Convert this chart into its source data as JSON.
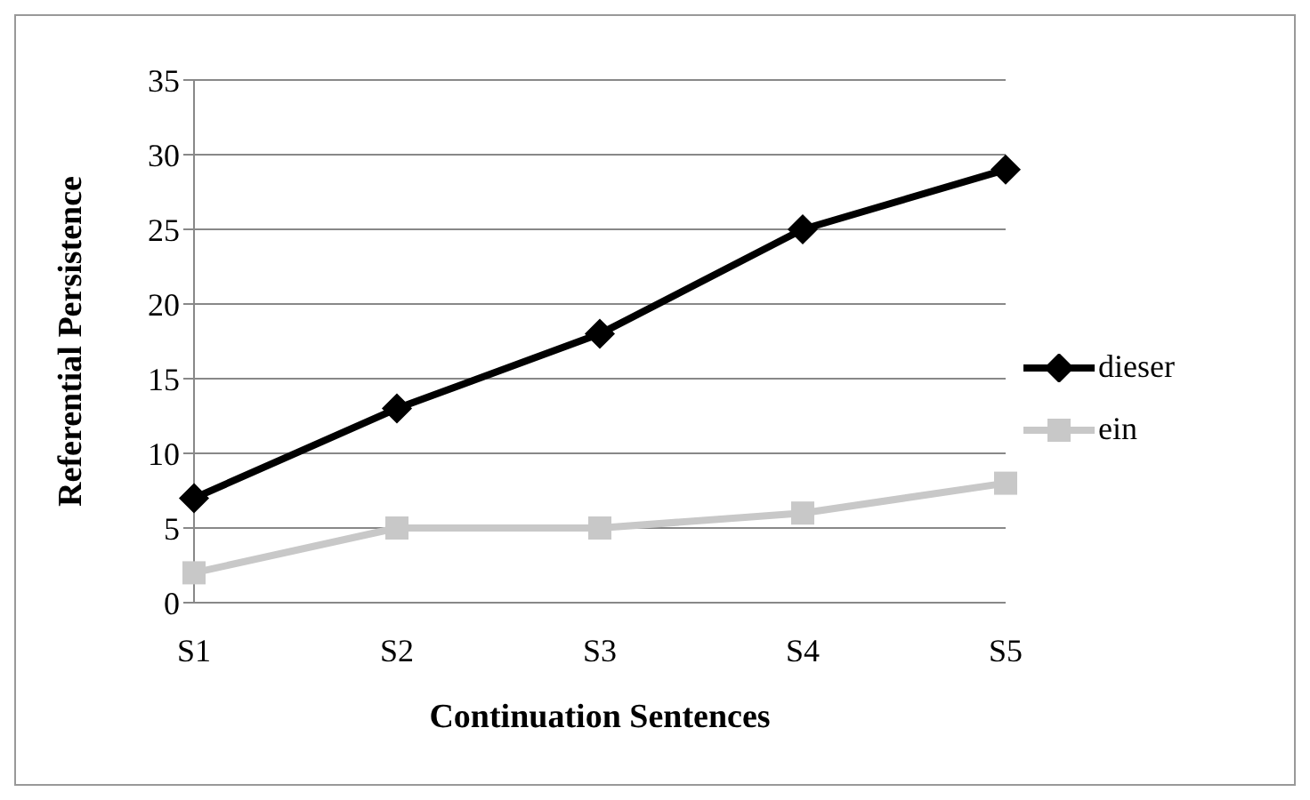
{
  "chart_data": {
    "type": "line",
    "xlabel": "Continuation Sentences",
    "ylabel": "Referential Persistence",
    "categories": [
      "S1",
      "S2",
      "S3",
      "S4",
      "S5"
    ],
    "series": [
      {
        "name": "dieser",
        "color": "#000000",
        "marker": "diamond",
        "values": [
          7,
          13,
          18,
          25,
          29
        ]
      },
      {
        "name": "ein",
        "color": "#c8c8c8",
        "marker": "square",
        "values": [
          2,
          5,
          5,
          6,
          8
        ]
      }
    ],
    "ylim": [
      0,
      35
    ],
    "yticks": [
      0,
      5,
      10,
      15,
      20,
      25,
      30,
      35
    ],
    "grid": "y",
    "legend": "right"
  }
}
